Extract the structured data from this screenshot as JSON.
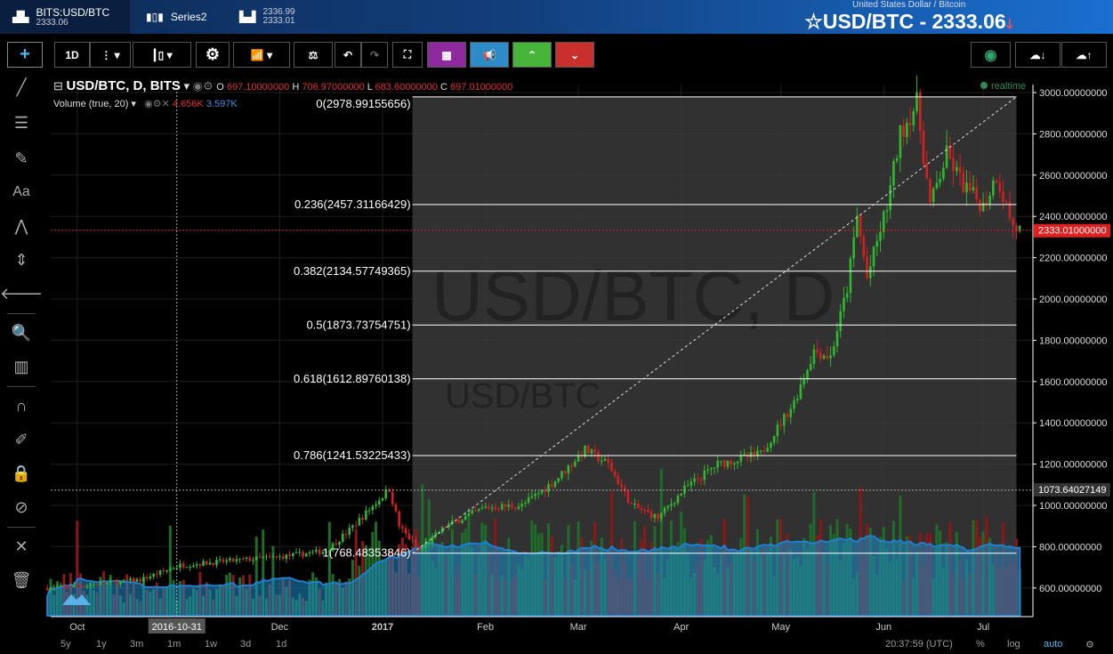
{
  "tabs": [
    {
      "label": "BITS:USD/BTC",
      "sub": "2333.06"
    },
    {
      "label": "Series2"
    },
    {
      "label": "2336.99",
      "sub": "2333.01"
    }
  ],
  "header": {
    "subtitle": "United States Dollar / Bitcoin",
    "title": "USD/BTC - 2333.06",
    "star": "☆",
    "arrow": "🡓"
  },
  "toolbar": {
    "interval": "1D",
    "icons": [
      "crosshair-icon",
      "more-icon",
      "candles-icon",
      "gear-icon",
      "indicators-icon",
      "compare-icon",
      "undo-icon",
      "redo-icon",
      "fullscreen-icon",
      "cube-icon",
      "megaphone-icon",
      "up-icon",
      "down-icon",
      "camera-icon",
      "cloud-download-icon",
      "cloud-upload-icon"
    ],
    "colors": {
      "cube": "#8e2a9e",
      "megaphone": "#2d8bc7",
      "up": "#46b53a",
      "down": "#c9302c",
      "camera": "#2ea56a"
    }
  },
  "legend": {
    "symbol": "USD/BTC, D, BITS",
    "o_label": "O",
    "o": "697.10000000",
    "h_label": "H",
    "h": "706.97000000",
    "l_label": "L",
    "l": "683.60000000",
    "c_label": "C",
    "c": "697.01000000"
  },
  "volume_legend": {
    "label": "Volume (true, 20)",
    "v1": "4.656K",
    "v2": "3.597K"
  },
  "realtime": "realtime",
  "watermark": {
    "big": "USD/BTC, D",
    "small": "USD/BTC"
  },
  "crosshair": {
    "date": "2016-10-31",
    "price": "1073.64027149"
  },
  "current_price": "2333.01000000",
  "chart_data": {
    "type": "candlestick",
    "y_range": [
      450,
      3050
    ],
    "y_ticks": [
      "600.00000000",
      "800.00000000",
      "1000.00000000",
      "1200.00000000",
      "1400.00000000",
      "1600.00000000",
      "1800.00000000",
      "2000.00000000",
      "2200.00000000",
      "2400.00000000",
      "2600.00000000",
      "2800.00000000",
      "3000.00000000"
    ],
    "y_tick_values": [
      600,
      800,
      1000,
      1200,
      1400,
      1600,
      1800,
      2000,
      2200,
      2400,
      2600,
      2800,
      3000
    ],
    "x_ticks": [
      {
        "label": "Oct",
        "date": "2016-10-01"
      },
      {
        "label": "Dec",
        "date": "2016-12-01"
      },
      {
        "label": "2017",
        "date": "2017-01-01"
      },
      {
        "label": "Feb",
        "date": "2017-02-01"
      },
      {
        "label": "Mar",
        "date": "2017-03-01"
      },
      {
        "label": "Apr",
        "date": "2017-04-01"
      },
      {
        "label": "May",
        "date": "2017-05-01"
      },
      {
        "label": "Jun",
        "date": "2017-06-01"
      },
      {
        "label": "Jul",
        "date": "2017-07-01"
      }
    ],
    "price_path": [
      [
        "2016-09-22",
        600
      ],
      [
        "2016-10-05",
        615
      ],
      [
        "2016-10-20",
        640
      ],
      [
        "2016-11-01",
        710
      ],
      [
        "2016-11-15",
        730
      ],
      [
        "2016-12-01",
        750
      ],
      [
        "2016-12-15",
        780
      ],
      [
        "2016-12-22",
        880
      ],
      [
        "2017-01-03",
        1080
      ],
      [
        "2017-01-06",
        900
      ],
      [
        "2017-01-12",
        780
      ],
      [
        "2017-01-20",
        900
      ],
      [
        "2017-02-01",
        990
      ],
      [
        "2017-02-12",
        1000
      ],
      [
        "2017-02-22",
        1120
      ],
      [
        "2017-03-03",
        1270
      ],
      [
        "2017-03-10",
        1200
      ],
      [
        "2017-03-17",
        1000
      ],
      [
        "2017-03-25",
        940
      ],
      [
        "2017-04-02",
        1080
      ],
      [
        "2017-04-12",
        1200
      ],
      [
        "2017-04-25",
        1250
      ],
      [
        "2017-05-05",
        1500
      ],
      [
        "2017-05-11",
        1750
      ],
      [
        "2017-05-16",
        1720
      ],
      [
        "2017-05-21",
        2050
      ],
      [
        "2017-05-24",
        2400
      ],
      [
        "2017-05-27",
        2100
      ],
      [
        "2017-06-02",
        2450
      ],
      [
        "2017-06-06",
        2800
      ],
      [
        "2017-06-11",
        2950
      ],
      [
        "2017-06-15",
        2450
      ],
      [
        "2017-06-20",
        2700
      ],
      [
        "2017-06-25",
        2550
      ],
      [
        "2017-07-01",
        2450
      ],
      [
        "2017-07-05",
        2600
      ],
      [
        "2017-07-10",
        2350
      ],
      [
        "2017-07-12",
        2333
      ]
    ],
    "fib": {
      "start": {
        "date": "2017-01-10",
        "price": 768.48353846
      },
      "end": {
        "date": "2017-07-11",
        "price": 2978.99155656
      },
      "levels": [
        {
          "label": "0(2978.99155656)",
          "price": 2978.99155656
        },
        {
          "label": "0.236(2457.31166429)",
          "price": 2457.31166429
        },
        {
          "label": "0.382(2134.57749365)",
          "price": 2134.57749365
        },
        {
          "label": "0.5(1873.73754751)",
          "price": 1873.73754751
        },
        {
          "label": "0.618(1612.89760138)",
          "price": 1612.89760138
        },
        {
          "label": "0.786(1241.53225433)",
          "price": 1241.53225433
        },
        {
          "label": "1(768.48353846)",
          "price": 768.48353846
        }
      ]
    },
    "colors": {
      "up": "#2fb82f",
      "down": "#d42020",
      "volume_ma": "#1e7fd0",
      "price_line": "#e02020"
    }
  },
  "ranges": [
    "5y",
    "1y",
    "3m",
    "1m",
    "1w",
    "3d",
    "1d"
  ],
  "time": "20:37:59 (UTC)",
  "scale_opts": [
    "%",
    "log",
    "auto"
  ]
}
